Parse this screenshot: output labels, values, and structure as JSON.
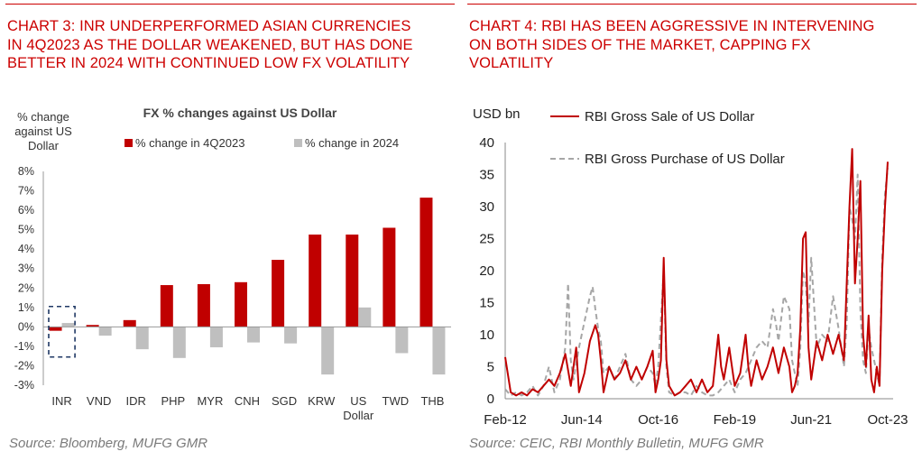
{
  "colors": {
    "accent": "#cc0000",
    "bar_4q2023": "#c00000",
    "bar_2024": "#bfbfbf",
    "line_sale": "#c00000",
    "line_purchase": "#a6a6a6",
    "source_text": "#7a7a7a",
    "highlight_box": "#1f3864"
  },
  "chart_data": [
    {
      "type": "bar",
      "heading": "CHART 3: INR UNDERPERFORMED ASIAN CURRENCIES IN 4Q2023 AS THE DOLLAR WEAKENED, BUT HAS DONE BETTER IN 2024 WITH CONTINUED LOW FX VOLATILITY",
      "heading_lines": [
        "CHART 3: INR UNDERPERFORMED ASIAN CURRENCIES",
        "IN 4Q2023 AS THE DOLLAR WEAKENED, BUT HAS DONE",
        "BETTER IN 2024 WITH CONTINUED LOW FX VOLATILITY"
      ],
      "title": "FX % changes against US Dollar",
      "ylabel_lines": [
        "% change",
        "against US",
        "Dollar"
      ],
      "ylim": [
        -3,
        8
      ],
      "yticks": [
        -3,
        -2,
        -1,
        0,
        1,
        2,
        3,
        4,
        5,
        6,
        7,
        8
      ],
      "ytick_labels": [
        "-3%",
        "-2%",
        "-1%",
        "0%",
        "1%",
        "2%",
        "3%",
        "4%",
        "5%",
        "6%",
        "7%",
        "8%"
      ],
      "categories": [
        "INR",
        "VND",
        "IDR",
        "PHP",
        "MYR",
        "CNH",
        "SGD",
        "KRW",
        "US Dollar",
        "TWD",
        "THB"
      ],
      "category_label_lines": [
        [
          "INR"
        ],
        [
          "VND"
        ],
        [
          "IDR"
        ],
        [
          "PHP"
        ],
        [
          "MYR"
        ],
        [
          "CNH"
        ],
        [
          "SGD"
        ],
        [
          "KRW"
        ],
        [
          "US",
          "Dollar"
        ],
        [
          "TWD"
        ],
        [
          "THB"
        ]
      ],
      "series": [
        {
          "name": "% change in 4Q2023",
          "values": [
            -0.2,
            0.1,
            0.35,
            2.15,
            2.2,
            2.3,
            3.45,
            4.75,
            4.75,
            5.1,
            6.65
          ]
        },
        {
          "name": "% change in 2024",
          "values": [
            0.2,
            -0.45,
            -1.15,
            -1.6,
            -1.05,
            -0.8,
            -0.85,
            -2.45,
            1.0,
            -1.35,
            -2.45
          ]
        }
      ],
      "legend_position": "top",
      "grid": false,
      "annotation": "dashed box highlighting INR",
      "source": "Source: Bloomberg, MUFG GMR"
    },
    {
      "type": "line",
      "heading": "CHART 4: RBI HAS BEEN AGGRESSIVE IN INTERVENING ON BOTH SIDES OF THE MARKET, CAPPING FX VOLATILITY",
      "heading_lines": [
        "CHART 4: RBI HAS BEEN AGGRESSIVE IN INTERVENING",
        "ON BOTH SIDES OF THE MARKET, CAPPING FX",
        "VOLATILITY"
      ],
      "ylabel": "USD bn",
      "ylim": [
        0,
        40
      ],
      "yticks": [
        0,
        5,
        10,
        15,
        20,
        25,
        30,
        35,
        40
      ],
      "x_start": "Feb-12",
      "x_end": "Oct-23",
      "x_months_total": 140,
      "xtick_labels": [
        "Feb-12",
        "Jun-14",
        "Oct-16",
        "Feb-19",
        "Jun-21",
        "Oct-23"
      ],
      "xtick_month_index": [
        0,
        28,
        56,
        84,
        112,
        140
      ],
      "legend_position": "top-left",
      "grid": false,
      "series": [
        {
          "name": "RBI Gross Sale of US Dollar",
          "style": "solid",
          "points": [
            [
              0,
              6.5
            ],
            [
              2,
              1
            ],
            [
              4,
              0.5
            ],
            [
              6,
              1
            ],
            [
              8,
              0.5
            ],
            [
              10,
              1.5
            ],
            [
              12,
              1
            ],
            [
              14,
              2
            ],
            [
              16,
              3
            ],
            [
              18,
              2
            ],
            [
              20,
              4
            ],
            [
              22,
              7
            ],
            [
              24,
              2
            ],
            [
              25,
              5
            ],
            [
              26,
              8
            ],
            [
              27,
              1
            ],
            [
              29,
              4
            ],
            [
              31,
              9
            ],
            [
              33,
              11.5
            ],
            [
              34,
              10
            ],
            [
              35,
              6
            ],
            [
              36,
              1
            ],
            [
              37,
              3
            ],
            [
              38,
              5
            ],
            [
              40,
              3
            ],
            [
              42,
              4
            ],
            [
              44,
              6
            ],
            [
              46,
              3
            ],
            [
              48,
              5
            ],
            [
              50,
              3
            ],
            [
              52,
              5
            ],
            [
              54,
              7.5
            ],
            [
              55,
              1
            ],
            [
              56,
              3
            ],
            [
              57,
              6
            ],
            [
              58,
              22
            ],
            [
              59,
              6
            ],
            [
              60,
              2
            ],
            [
              62,
              0.5
            ],
            [
              64,
              1
            ],
            [
              66,
              2
            ],
            [
              68,
              3
            ],
            [
              70,
              1
            ],
            [
              72,
              3
            ],
            [
              74,
              1
            ],
            [
              76,
              2
            ],
            [
              78,
              10
            ],
            [
              79,
              5
            ],
            [
              80,
              3
            ],
            [
              82,
              8
            ],
            [
              84,
              2
            ],
            [
              86,
              4
            ],
            [
              88,
              10
            ],
            [
              89,
              5
            ],
            [
              90,
              2
            ],
            [
              92,
              6
            ],
            [
              94,
              3
            ],
            [
              96,
              5
            ],
            [
              98,
              8
            ],
            [
              100,
              4
            ],
            [
              102,
              8
            ],
            [
              104,
              5
            ],
            [
              105,
              1
            ],
            [
              106,
              2
            ],
            [
              107,
              4
            ],
            [
              108,
              11
            ],
            [
              109,
              25
            ],
            [
              110,
              26
            ],
            [
              111,
              8
            ],
            [
              112,
              3
            ],
            [
              114,
              9
            ],
            [
              116,
              6
            ],
            [
              118,
              10
            ],
            [
              120,
              7
            ],
            [
              122,
              10
            ],
            [
              124,
              6
            ],
            [
              126,
              30
            ],
            [
              127,
              39
            ],
            [
              128,
              18
            ],
            [
              129,
              25
            ],
            [
              130,
              34
            ],
            [
              131,
              10
            ],
            [
              132,
              5
            ],
            [
              133,
              13
            ],
            [
              134,
              3
            ],
            [
              135,
              1
            ],
            [
              136,
              5
            ],
            [
              137,
              2
            ],
            [
              138,
              20
            ],
            [
              139,
              30
            ],
            [
              140,
              37
            ]
          ]
        },
        {
          "name": "RBI Gross Purchase of US Dollar",
          "style": "dashed",
          "points": [
            [
              0,
              1.5
            ],
            [
              2,
              0.5
            ],
            [
              4,
              1
            ],
            [
              6,
              0.5
            ],
            [
              8,
              1
            ],
            [
              10,
              2
            ],
            [
              12,
              0.5
            ],
            [
              14,
              2
            ],
            [
              16,
              5
            ],
            [
              18,
              1
            ],
            [
              20,
              3
            ],
            [
              22,
              8
            ],
            [
              23,
              18
            ],
            [
              24,
              6
            ],
            [
              25,
              3
            ],
            [
              27,
              8
            ],
            [
              29,
              12
            ],
            [
              31,
              16
            ],
            [
              32,
              17.5
            ],
            [
              33,
              14
            ],
            [
              34,
              11
            ],
            [
              35,
              9
            ],
            [
              36,
              4
            ],
            [
              38,
              5
            ],
            [
              40,
              3
            ],
            [
              42,
              5
            ],
            [
              44,
              7
            ],
            [
              46,
              3
            ],
            [
              48,
              2
            ],
            [
              50,
              3
            ],
            [
              52,
              5
            ],
            [
              54,
              4
            ],
            [
              55,
              2
            ],
            [
              56,
              5
            ],
            [
              58,
              20
            ],
            [
              59,
              5
            ],
            [
              60,
              1
            ],
            [
              62,
              0.5
            ],
            [
              64,
              1
            ],
            [
              66,
              1
            ],
            [
              68,
              0.5
            ],
            [
              70,
              2
            ],
            [
              72,
              1
            ],
            [
              74,
              0.5
            ],
            [
              76,
              0.5
            ],
            [
              78,
              1
            ],
            [
              80,
              2
            ],
            [
              82,
              3
            ],
            [
              84,
              1
            ],
            [
              86,
              3
            ],
            [
              88,
              4
            ],
            [
              90,
              6
            ],
            [
              92,
              8
            ],
            [
              94,
              9
            ],
            [
              96,
              8
            ],
            [
              98,
              14
            ],
            [
              99,
              12
            ],
            [
              100,
              9
            ],
            [
              102,
              16
            ],
            [
              104,
              14
            ],
            [
              105,
              6
            ],
            [
              106,
              4
            ],
            [
              107,
              2
            ],
            [
              108,
              8
            ],
            [
              109,
              20
            ],
            [
              110,
              18
            ],
            [
              111,
              12
            ],
            [
              112,
              22
            ],
            [
              113,
              15
            ],
            [
              114,
              8
            ],
            [
              116,
              10
            ],
            [
              118,
              9
            ],
            [
              120,
              16
            ],
            [
              122,
              11
            ],
            [
              124,
              5
            ],
            [
              125,
              12
            ],
            [
              126,
              30
            ],
            [
              127,
              28
            ],
            [
              128,
              25
            ],
            [
              129,
              35
            ],
            [
              130,
              14
            ],
            [
              131,
              6
            ],
            [
              132,
              4
            ],
            [
              133,
              11
            ],
            [
              134,
              8
            ],
            [
              135,
              6
            ],
            [
              136,
              4
            ],
            [
              137,
              2
            ],
            [
              138,
              22
            ],
            [
              139,
              32
            ],
            [
              140,
              36
            ]
          ]
        }
      ],
      "source": "Source: CEIC, RBI Monthly Bulletin, MUFG GMR"
    }
  ]
}
